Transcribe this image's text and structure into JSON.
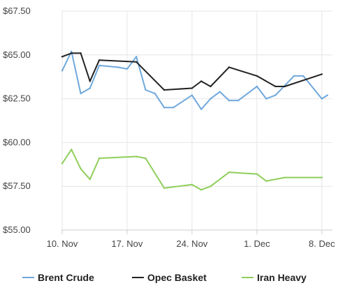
{
  "chart_data": {
    "type": "line",
    "title": "",
    "xlabel": "",
    "ylabel": "",
    "ylim": [
      55,
      67.5
    ],
    "xlim": [
      0,
      28.6
    ],
    "y_ticks": [
      {
        "value": 67.5,
        "label": "$67.50"
      },
      {
        "value": 65.0,
        "label": "$65.00"
      },
      {
        "value": 62.5,
        "label": "$62.50"
      },
      {
        "value": 60.0,
        "label": "$60.00"
      },
      {
        "value": 57.5,
        "label": "$57.50"
      },
      {
        "value": 55.0,
        "label": "$55.00"
      }
    ],
    "x_ticks": [
      {
        "value": 0,
        "label": "10. Nov"
      },
      {
        "value": 7,
        "label": "17. Nov"
      },
      {
        "value": 14,
        "label": "24. Nov"
      },
      {
        "value": 21,
        "label": "1. Dec"
      },
      {
        "value": 28,
        "label": "8. Dec"
      }
    ],
    "grid": true,
    "legend_position": "bottom",
    "series": [
      {
        "name": "Brent Crude",
        "color": "#6fa8dc",
        "points": [
          [
            0,
            64.1
          ],
          [
            1,
            65.2
          ],
          [
            2,
            62.8
          ],
          [
            3,
            63.1
          ],
          [
            4,
            64.4
          ],
          [
            6,
            64.3
          ],
          [
            7,
            64.2
          ],
          [
            8,
            64.9
          ],
          [
            9,
            63.0
          ],
          [
            10,
            62.8
          ],
          [
            11,
            62.0
          ],
          [
            12,
            62.0
          ],
          [
            14,
            62.7
          ],
          [
            15,
            61.9
          ],
          [
            16,
            62.5
          ],
          [
            17,
            62.9
          ],
          [
            18,
            62.4
          ],
          [
            19,
            62.4
          ],
          [
            21,
            63.2
          ],
          [
            22,
            62.5
          ],
          [
            23,
            62.7
          ],
          [
            25,
            63.8
          ],
          [
            26,
            63.8
          ],
          [
            28,
            62.5
          ],
          [
            28.6,
            62.7
          ]
        ]
      },
      {
        "name": "Opec Basket",
        "color": "#222222",
        "points": [
          [
            0,
            64.9
          ],
          [
            1,
            65.1
          ],
          [
            2,
            65.1
          ],
          [
            3,
            63.5
          ],
          [
            4,
            64.7
          ],
          [
            8,
            64.6
          ],
          [
            11,
            63.0
          ],
          [
            14,
            63.1
          ],
          [
            15,
            63.5
          ],
          [
            16,
            63.2
          ],
          [
            18,
            64.3
          ],
          [
            21,
            63.8
          ],
          [
            23,
            63.2
          ],
          [
            24,
            63.2
          ],
          [
            28,
            63.9
          ]
        ]
      },
      {
        "name": "Iran Heavy",
        "color": "#8fce5a",
        "points": [
          [
            0,
            58.8
          ],
          [
            1,
            59.6
          ],
          [
            2,
            58.5
          ],
          [
            3,
            57.9
          ],
          [
            4,
            59.1
          ],
          [
            8,
            59.2
          ],
          [
            9,
            59.1
          ],
          [
            11,
            57.4
          ],
          [
            14,
            57.6
          ],
          [
            15,
            57.3
          ],
          [
            16,
            57.5
          ],
          [
            18,
            58.3
          ],
          [
            21,
            58.2
          ],
          [
            22,
            57.8
          ],
          [
            24,
            58.0
          ],
          [
            28,
            58.0
          ]
        ]
      }
    ]
  }
}
